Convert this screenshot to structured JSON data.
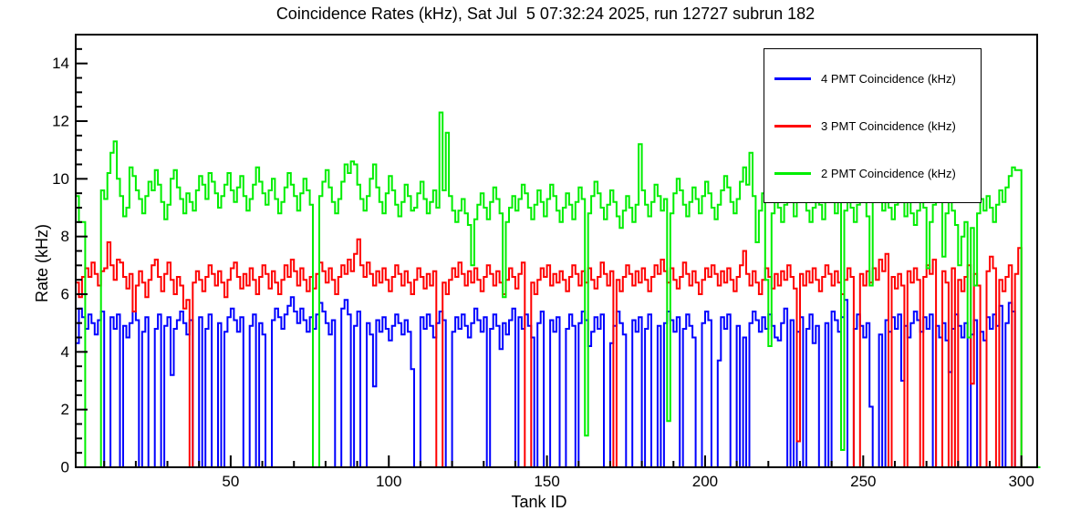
{
  "title": "Coincidence Rates (kHz), Sat Jul  5 07:32:24 2025, run 12727 subrun 182",
  "chart_data": {
    "type": "line",
    "subtype": "step-histogram",
    "title": "Coincidence Rates (kHz), Sat Jul  5 07:32:24 2025, run 12727 subrun 182",
    "xlabel": "Tank ID",
    "ylabel": "Rate (kHz)",
    "xlim": [
      1,
      305
    ],
    "ylim": [
      0,
      15
    ],
    "x_bin_width": 1,
    "xticks_major": [
      50,
      100,
      150,
      200,
      250,
      300
    ],
    "xticks_minor_step": 10,
    "yticks_major": [
      0,
      2,
      4,
      6,
      8,
      10,
      12,
      14
    ],
    "yticks_minor_step": 0.5,
    "grid": false,
    "legend_position": "top-right",
    "frame_color": "#000000",
    "background": "#ffffff",
    "series": [
      {
        "name": "4 PMT Coincidence (kHz)",
        "color": "#0000ff",
        "values": [
          4.3,
          5.5,
          5.2,
          4.8,
          5.3,
          5.0,
          4.6,
          5.1,
          5.4,
          0,
          0,
          5.2,
          4.8,
          5.3,
          0,
          4.9,
          4.5,
          5.0,
          5.4,
          5.1,
          0,
          4.7,
          5.2,
          0,
          0,
          4.8,
          5.3,
          0,
          4.9,
          5.2,
          3.2,
          4.8,
          5.1,
          5.4,
          5.0,
          4.6,
          5.1,
          0,
          0,
          5.2,
          0,
          4.8,
          5.3,
          0,
          0,
          5.0,
          0,
          4.7,
          5.2,
          5.5,
          5.1,
          4.7,
          5.2,
          0,
          0,
          4.9,
          5.3,
          0,
          5.0,
          4.6,
          0,
          0,
          5.1,
          5.5,
          5.2,
          4.8,
          5.3,
          5.6,
          5.9,
          5.4,
          5.0,
          5.5,
          5.1,
          4.7,
          5.2,
          4.8,
          5.3,
          5.7,
          5.4,
          5.0,
          4.6,
          5.1,
          0,
          0,
          5.5,
          5.8,
          5.3,
          0,
          4.9,
          5.4,
          0,
          0,
          5.0,
          4.6,
          2.8,
          5.1,
          4.7,
          5.2,
          4.8,
          4.4,
          4.9,
          5.3,
          5.0,
          4.6,
          5.1,
          4.7,
          3.4,
          0,
          0,
          5.2,
          4.8,
          5.3,
          4.9,
          4.5,
          5.0,
          5.4,
          5.1,
          0,
          0,
          4.7,
          5.2,
          4.8,
          5.3,
          4.9,
          4.5,
          5.0,
          5.5,
          5.1,
          4.7,
          5.2,
          0,
          4.8,
          5.3,
          4.9,
          4.1,
          5.0,
          4.6,
          5.1,
          5.5,
          0,
          5.2,
          4.8,
          5.3,
          4.9,
          4.5,
          0,
          5.0,
          5.4,
          0,
          0,
          5.1,
          4.7,
          5.2,
          0,
          0,
          4.8,
          5.3,
          4.9,
          0,
          5.0,
          5.4,
          5.1,
          4.2,
          4.7,
          5.2,
          4.8,
          5.3,
          0,
          0,
          4.3,
          4.9,
          5.4,
          5.0,
          4.6,
          0,
          0,
          5.1,
          4.7,
          5.2,
          0,
          4.8,
          5.3,
          0,
          0,
          4.9,
          0,
          5.0,
          5.4,
          5.1,
          4.7,
          5.2,
          0,
          4.8,
          5.3,
          4.9,
          4.5,
          0,
          0,
          5.0,
          5.4,
          5.1,
          0,
          0,
          3.7,
          5.2,
          4.8,
          5.3,
          0,
          0,
          4.9,
          0,
          4.5,
          0,
          5.0,
          5.4,
          5.1,
          4.7,
          5.2,
          4.8,
          5.3,
          4.9,
          4.5,
          4.4,
          5.0,
          5.5,
          0,
          5.1,
          0,
          4.7,
          5.2,
          0,
          4.8,
          5.3,
          4.3,
          4.9,
          0,
          0,
          5.0,
          0,
          5.4,
          5.1,
          4.7,
          5.2,
          5.8,
          0,
          0,
          4.8,
          5.3,
          4.9,
          4.5,
          5.0,
          2.1,
          0,
          0,
          4.6,
          0,
          5.1,
          4.7,
          5.2,
          4.8,
          5.3,
          3.0,
          4.9,
          4.5,
          5.0,
          5.4,
          5.1,
          4.7,
          5.2,
          4.8,
          5.3,
          0,
          4.9,
          4.5,
          5.0,
          4.4,
          3.3,
          4.8,
          5.3,
          4.9,
          4.5,
          5.0,
          0,
          4.6,
          5.1,
          0,
          4.7,
          4.4,
          5.2,
          4.8,
          5.3,
          4.9,
          5.6,
          0,
          5.0,
          5.7,
          5.4,
          0,
          0,
          0,
          0,
          0,
          0,
          0,
          0
        ]
      },
      {
        "name": "3 PMT Coincidence (kHz)",
        "color": "#ff0000",
        "values": [
          6.4,
          5.9,
          6.6,
          6.9,
          6.6,
          7.1,
          6.7,
          6.3,
          6.8,
          6.9,
          7.8,
          7.0,
          6.5,
          7.2,
          7.1,
          6.6,
          6.2,
          6.7,
          5.4,
          6.3,
          6.8,
          6.4,
          5.9,
          6.5,
          7.0,
          7.2,
          6.6,
          6.1,
          6.7,
          7.1,
          6.5,
          6.0,
          6.6,
          6.3,
          5.5,
          5.8,
          0,
          6.4,
          6.8,
          6.5,
          6.1,
          6.6,
          7.0,
          6.7,
          6.3,
          6.8,
          6.4,
          5.9,
          6.5,
          6.9,
          7.1,
          6.6,
          6.2,
          6.7,
          6.3,
          6.9,
          6.5,
          6.0,
          6.6,
          7.0,
          6.7,
          6.2,
          6.8,
          6.4,
          6.0,
          6.5,
          7.0,
          6.6,
          7.2,
          6.8,
          6.3,
          6.9,
          6.5,
          6.1,
          6.6,
          6.2,
          6.7,
          7.1,
          6.8,
          6.4,
          6.9,
          6.5,
          6.0,
          6.6,
          7.0,
          6.7,
          7.2,
          6.8,
          7.4,
          7.9,
          7.0,
          6.6,
          7.1,
          6.7,
          6.3,
          6.8,
          6.4,
          6.9,
          6.5,
          6.1,
          6.6,
          7.0,
          6.7,
          6.3,
          6.8,
          6.4,
          6.0,
          6.5,
          6.9,
          6.6,
          6.2,
          6.7,
          6.3,
          6.8,
          0,
          0,
          6.4,
          6.0,
          6.5,
          6.9,
          6.6,
          7.1,
          6.7,
          6.3,
          6.8,
          6.4,
          6.9,
          6.5,
          6.1,
          6.6,
          7.0,
          6.7,
          6.3,
          6.8,
          6.4,
          6.0,
          6.5,
          6.9,
          6.6,
          6.2,
          6.7,
          7.1,
          0,
          0,
          6.4,
          6.0,
          6.5,
          6.9,
          6.6,
          7.0,
          6.3,
          6.7,
          6.4,
          6.8,
          6.5,
          6.1,
          6.6,
          7.0,
          6.7,
          6.3,
          6.8,
          6.4,
          6.9,
          6.5,
          6.2,
          6.6,
          7.1,
          6.7,
          6.3,
          6.8,
          0,
          6.5,
          6.1,
          6.6,
          7.0,
          6.7,
          6.3,
          6.8,
          6.4,
          6.9,
          6.5,
          6.1,
          6.6,
          7.0,
          6.7,
          7.2,
          6.8,
          6.4,
          6.9,
          6.5,
          6.2,
          6.6,
          7.1,
          6.7,
          6.3,
          6.8,
          6.4,
          6.0,
          6.5,
          6.9,
          6.6,
          7.0,
          6.7,
          6.3,
          6.8,
          6.4,
          6.9,
          6.5,
          6.1,
          6.6,
          7.0,
          7.5,
          6.7,
          6.3,
          6.8,
          6.4,
          6.0,
          6.5,
          6.9,
          6.6,
          6.2,
          6.7,
          6.3,
          6.8,
          6.5,
          7.0,
          6.6,
          6.2,
          0.9,
          6.7,
          6.3,
          6.8,
          6.4,
          6.9,
          6.5,
          6.1,
          6.6,
          7.0,
          6.7,
          6.3,
          6.8,
          6.4,
          6.0,
          6.5,
          6.9,
          6.6,
          0,
          0,
          6.7,
          6.3,
          6.8,
          6.4,
          6.9,
          6.5,
          7.2,
          6.8,
          7.4,
          0,
          6.6,
          6.2,
          6.7,
          6.3,
          0,
          6.8,
          6.4,
          6.9,
          6.5,
          0,
          6.6,
          7.0,
          6.7,
          7.2,
          0,
          0,
          6.8,
          6.4,
          0,
          6.9,
          0,
          6.5,
          6.1,
          6.6,
          7.0,
          2.9,
          6.7,
          6.3,
          0,
          0,
          6.8,
          7.3,
          6.9,
          0,
          6.5,
          6.1,
          6.6,
          7.0,
          0,
          6.7,
          7.6,
          0,
          0,
          0,
          0,
          0,
          0
        ]
      },
      {
        "name": "2 PMT Coincidence (kHz)",
        "color": "#00ee00",
        "values": [
          9.4,
          8.5,
          8.5,
          0,
          0,
          0,
          0,
          0,
          9.6,
          9.3,
          10.2,
          10.9,
          11.3,
          10.0,
          9.4,
          8.7,
          9.0,
          10.4,
          10.1,
          9.6,
          9.3,
          8.8,
          9.4,
          9.9,
          9.6,
          10.3,
          9.8,
          9.2,
          8.6,
          9.1,
          10.0,
          10.3,
          9.7,
          9.3,
          8.8,
          9.5,
          9.2,
          8.9,
          9.6,
          10.1,
          9.8,
          9.3,
          10.2,
          9.9,
          9.5,
          9.0,
          9.4,
          9.8,
          10.2,
          9.6,
          9.2,
          9.7,
          10.1,
          9.4,
          8.9,
          9.3,
          9.8,
          10.4,
          9.9,
          9.5,
          9.1,
          9.6,
          10.0,
          9.3,
          8.8,
          9.2,
          9.7,
          10.2,
          9.8,
          9.4,
          8.9,
          9.5,
          10.0,
          9.6,
          9.1,
          0,
          0,
          9.4,
          9.9,
          10.3,
          9.7,
          9.2,
          8.8,
          9.3,
          9.9,
          10.5,
          10.2,
          10.6,
          10.5,
          9.8,
          9.3,
          8.9,
          9.4,
          10.0,
          10.5,
          9.7,
          9.2,
          8.8,
          9.5,
          10.1,
          9.6,
          9.1,
          8.7,
          9.2,
          9.8,
          9.4,
          8.9,
          9.0,
          9.5,
          9.9,
          9.3,
          8.8,
          9.2,
          9.6,
          9.0,
          12.3,
          9.6,
          11.6,
          9.4,
          8.9,
          8.5,
          8.9,
          9.3,
          8.8,
          8.4,
          7.0,
          8.6,
          9.1,
          9.5,
          9.0,
          8.6,
          9.2,
          9.7,
          9.3,
          8.8,
          5.9,
          8.5,
          9.0,
          9.4,
          8.9,
          9.3,
          9.8,
          9.5,
          9.0,
          8.6,
          9.1,
          9.6,
          9.2,
          8.7,
          9.3,
          9.8,
          9.4,
          8.9,
          8.5,
          9.0,
          9.5,
          9.1,
          8.6,
          9.2,
          9.7,
          9.3,
          1.1,
          8.8,
          9.4,
          9.9,
          9.5,
          9.0,
          8.6,
          9.1,
          9.6,
          9.2,
          8.7,
          8.3,
          8.9,
          9.4,
          9.0,
          8.5,
          9.1,
          11.2,
          9.6,
          9.1,
          8.7,
          9.2,
          9.8,
          9.4,
          8.9,
          9.3,
          1.6,
          8.8,
          9.5,
          10.0,
          9.6,
          9.1,
          8.7,
          9.2,
          9.7,
          9.3,
          8.8,
          9.4,
          9.9,
          9.5,
          9.0,
          8.6,
          9.1,
          9.6,
          10.1,
          9.7,
          9.2,
          8.8,
          9.3,
          9.9,
          10.4,
          9.8,
          10.9,
          9.4,
          7.8,
          8.9,
          9.5,
          6.5,
          4.2,
          8.8,
          9.4,
          9.0,
          8.5,
          9.1,
          9.6,
          9.2,
          8.7,
          9.3,
          9.8,
          9.4,
          8.9,
          8.5,
          9.0,
          9.5,
          9.1,
          8.6,
          9.2,
          9.7,
          9.3,
          8.8,
          9.4,
          0.6,
          8.9,
          9.5,
          9.0,
          8.5,
          9.1,
          9.6,
          9.2,
          8.7,
          6.3,
          9.3,
          9.8,
          9.4,
          8.9,
          9.5,
          9.0,
          8.6,
          9.1,
          9.6,
          9.2,
          8.7,
          9.3,
          8.8,
          8.4,
          8.9,
          9.4,
          9.0,
          6.9,
          8.5,
          9.1,
          9.6,
          9.2,
          7.3,
          8.8,
          9.3,
          8.9,
          8.4,
          7.0,
          8.0,
          8.5,
          4.5,
          8.3,
          6.3,
          8.8,
          9.3,
          8.9,
          9.4,
          9.0,
          8.5,
          9.1,
          9.6,
          9.2,
          9.7,
          10.1,
          10.4,
          10.3,
          10.3,
          0,
          0,
          0,
          0,
          0,
          0
        ]
      }
    ]
  },
  "legend": {
    "items": [
      {
        "label": "4 PMT Coincidence (kHz)",
        "color": "#0000ff"
      },
      {
        "label": "3 PMT Coincidence (kHz)",
        "color": "#ff0000"
      },
      {
        "label": "2 PMT Coincidence (kHz)",
        "color": "#00ee00"
      }
    ]
  },
  "axes": {
    "x_title": "Tank ID",
    "y_title": "Rate (kHz)"
  }
}
